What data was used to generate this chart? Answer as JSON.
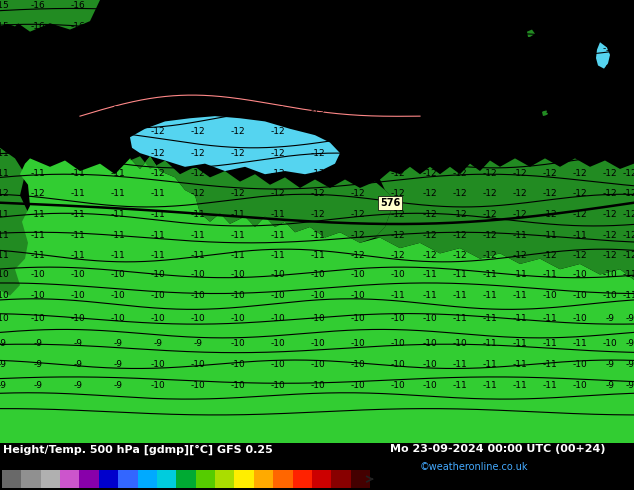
{
  "title_left": "Height/Temp. 500 hPa [gdmp][°C] GFS 0.25",
  "title_right": "Mo 23-09-2024 00:00 UTC (00+24)",
  "credit": "©weatheronline.co.uk",
  "colorbar_colors": [
    "#696969",
    "#909090",
    "#b0b0b0",
    "#cc55cc",
    "#8800aa",
    "#0000cc",
    "#3366ff",
    "#00aaff",
    "#00ccdd",
    "#00aa33",
    "#55cc00",
    "#aadd00",
    "#ffee00",
    "#ffaa00",
    "#ff6600",
    "#ff2200",
    "#cc0000",
    "#880000",
    "#440000"
  ],
  "colorbar_ticks": [
    "-54",
    "-48",
    "-42",
    "-38",
    "-30",
    "-24",
    "-18",
    "-12",
    "-6",
    "0",
    "6",
    "12",
    "18",
    "24",
    "30",
    "36",
    "42",
    "48",
    "54"
  ],
  "bg_sea": "#55d4f0",
  "bg_land_bright": "#32CD32",
  "bg_land_dark": "#228B22",
  "bg_land_medium": "#2e8b57",
  "contour_color_main": "#000000",
  "contour_color_bold": "#000000",
  "label_color": "#000000",
  "bottom_bg": "#00bb00",
  "bottom_text_color": "#ffffff",
  "credit_color": "#44aaff",
  "figsize": [
    6.34,
    4.9
  ],
  "dpi": 100
}
